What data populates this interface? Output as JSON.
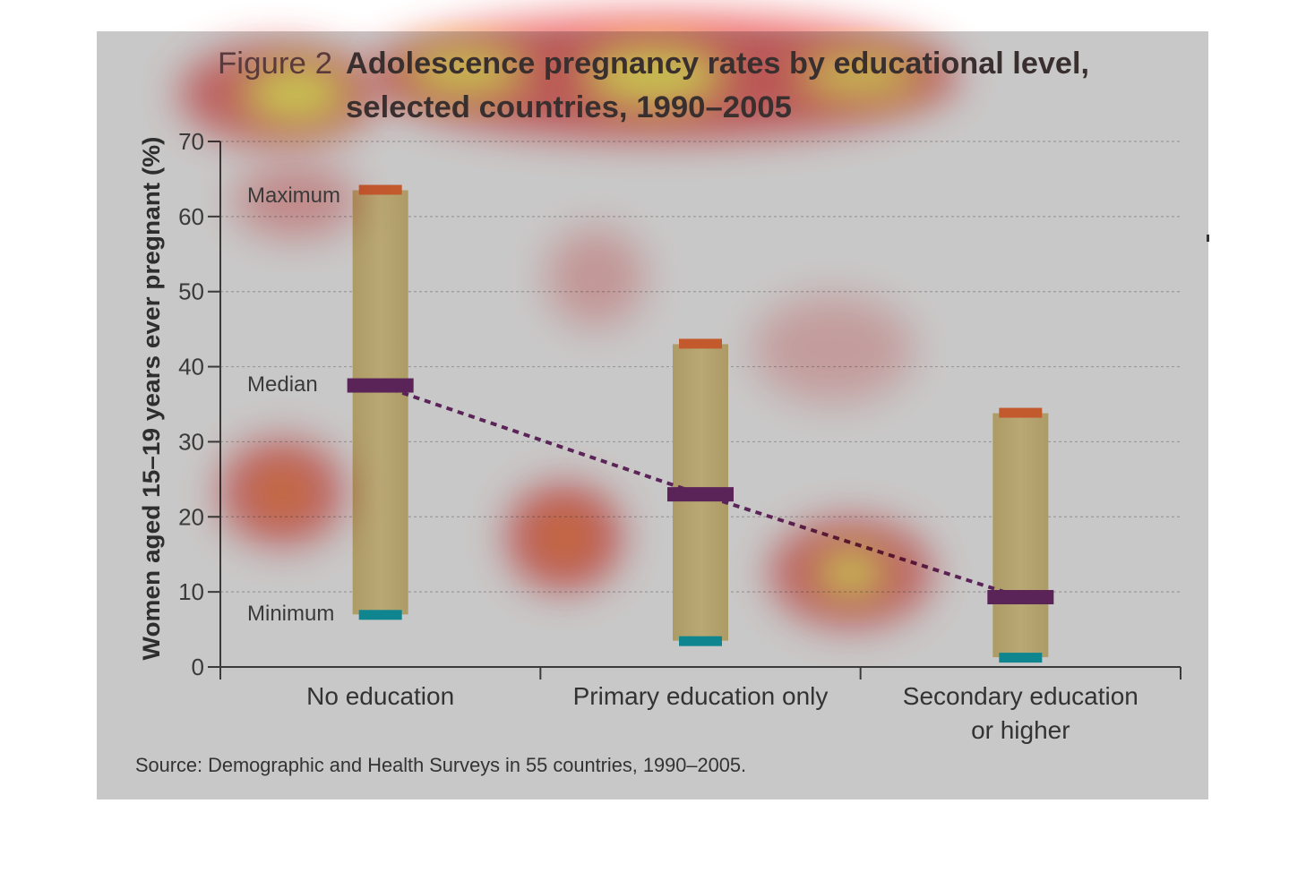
{
  "chart_data": {
    "type": "range",
    "figure_label": "Figure 2",
    "title": "Adolescence pregnancy rates by educational level, selected countries, 1990–2005",
    "title_line1": "Adolescence pregnancy rates by educational level,",
    "title_line2": "selected countries, 1990–2005",
    "ylabel": "Women aged 15–19 years ever pregnant (%)",
    "ylim": [
      0,
      70
    ],
    "yticks": [
      0,
      10,
      20,
      30,
      40,
      50,
      60,
      70
    ],
    "grid": true,
    "categories": [
      {
        "label": [
          "No education"
        ],
        "minimum": 7,
        "median": 37.5,
        "maximum": 63.5
      },
      {
        "label": [
          "Primary education only"
        ],
        "minimum": 3.5,
        "median": 23,
        "maximum": 43
      },
      {
        "label": [
          "Secondary education",
          "or higher"
        ],
        "minimum": 1.3,
        "median": 9.3,
        "maximum": 33.8
      }
    ],
    "annotations": {
      "maximum": "Maximum",
      "median": "Median",
      "minimum": "Minimum"
    },
    "source": "Source: Demographic and Health Surveys in 55 countries, 1990–2005.",
    "colors": {
      "background": "#c9c8c8",
      "range_bar": "#b5a46e",
      "median": "#5b2458",
      "maximum": "#c25a2e",
      "minimum": "#0f8590",
      "trend_line": "#5b2458",
      "heat_hot": "#ffff66",
      "heat_mid": "#ff8a3c",
      "heat_cool": "#e84b4b"
    }
  }
}
